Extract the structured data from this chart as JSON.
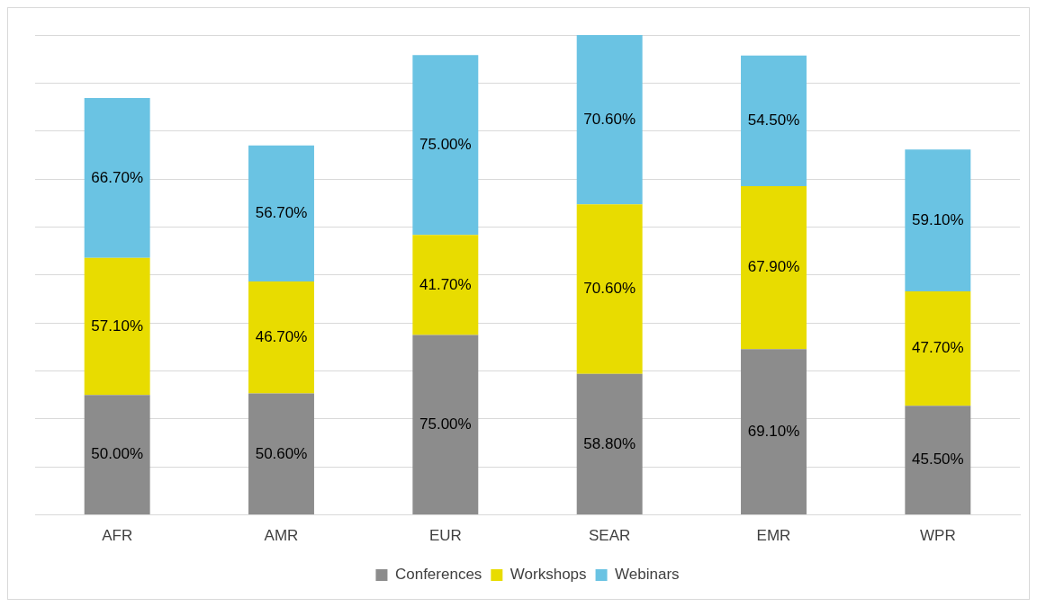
{
  "chart_data": {
    "type": "bar",
    "stacked": true,
    "categories": [
      "AFR",
      "AMR",
      "EUR",
      "SEAR",
      "EMR",
      "WPR"
    ],
    "series": [
      {
        "name": "Conferences",
        "color": "#8c8c8c",
        "values": [
          50.0,
          50.6,
          75.0,
          58.8,
          69.1,
          45.5
        ],
        "value_labels": [
          "50.00%",
          "50.60%",
          "75.00%",
          "58.80%",
          "69.10%",
          "45.50%"
        ]
      },
      {
        "name": "Workshops",
        "color": "#e8dc00",
        "values": [
          57.1,
          46.7,
          41.7,
          70.6,
          67.9,
          47.7
        ],
        "value_labels": [
          "57.10%",
          "46.70%",
          "41.70%",
          "70.60%",
          "67.90%",
          "47.70%"
        ]
      },
      {
        "name": "Webinars",
        "color": "#6ac3e3",
        "values": [
          66.7,
          56.7,
          75.0,
          70.6,
          54.5,
          59.1
        ],
        "value_labels": [
          "66.70%",
          "56.70%",
          "75.00%",
          "70.60%",
          "54.50%",
          "59.10%"
        ]
      }
    ],
    "ylim": [
      0,
      200
    ],
    "yticks": [
      {
        "value": 0,
        "label": null
      },
      {
        "value": 20,
        "label": null
      },
      {
        "value": 40,
        "label": null
      },
      {
        "value": 60,
        "label": null
      },
      {
        "value": 80,
        "label": null
      },
      {
        "value": 100,
        "label": null
      },
      {
        "value": 120,
        "label": null
      },
      {
        "value": 140,
        "label": null
      },
      {
        "value": 160,
        "label": null
      },
      {
        "value": 180,
        "label": null
      },
      {
        "value": 200,
        "label": null
      }
    ],
    "tick_labels": "x",
    "grid": "y",
    "legend": "bottom"
  }
}
